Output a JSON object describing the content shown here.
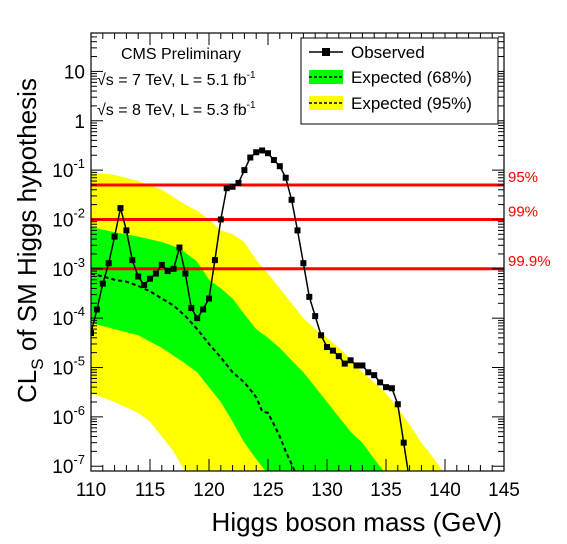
{
  "chart_data": {
    "type": "line",
    "xlabel": "Higgs boson mass (GeV)",
    "ylabel_main": "CL",
    "ylabel_sub": "S",
    "ylabel_rest": " of SM Higgs hypothesis",
    "xlim": [
      110,
      145
    ],
    "ylim": [
      8e-08,
      60
    ],
    "y_scale": "log",
    "x_ticks": [
      110,
      115,
      120,
      125,
      130,
      135,
      140,
      145
    ],
    "y_ticks": [
      {
        "value": 1e-07,
        "base": "10",
        "exp": "-7"
      },
      {
        "value": 1e-06,
        "base": "10",
        "exp": "-6"
      },
      {
        "value": 1e-05,
        "base": "10",
        "exp": "-5"
      },
      {
        "value": 0.0001,
        "base": "10",
        "exp": "-4"
      },
      {
        "value": 0.001,
        "base": "10",
        "exp": "-3"
      },
      {
        "value": 0.01,
        "base": "10",
        "exp": "-2"
      },
      {
        "value": 0.1,
        "base": "10",
        "exp": "-1"
      },
      {
        "value": 1,
        "base": "1",
        "exp": ""
      },
      {
        "value": 10,
        "base": "10",
        "exp": ""
      }
    ],
    "annotations": {
      "experiment": "CMS Preliminary",
      "line1": {
        "sqrt": "√",
        "prefix": "s = 7 TeV, L = 5.1 fb",
        "sup": "-1"
      },
      "line2": {
        "sqrt": "√",
        "prefix": "s = 8 TeV, L = 5.3 fb",
        "sup": "-1"
      }
    },
    "legend": {
      "placement": "top-right",
      "entries": [
        {
          "label": "Observed",
          "kind": "marker-line"
        },
        {
          "label": "Expected (68%)",
          "kind": "band",
          "color": "#00ff00"
        },
        {
          "label": "Expected (95%)",
          "kind": "band",
          "color": "#ffff00"
        }
      ]
    },
    "confidence_lines": [
      {
        "value": 0.05,
        "label": "95%"
      },
      {
        "value": 0.01,
        "label": "99%"
      },
      {
        "value": 0.001,
        "label": "99.9%"
      }
    ],
    "colors": {
      "band68": "#00ff00",
      "band95": "#ffff00",
      "cl_line": "#ff0000",
      "observed": "#000000"
    },
    "observed": [
      {
        "x": 110,
        "y": 5e-05
      },
      {
        "x": 110.5,
        "y": 0.00015
      },
      {
        "x": 111,
        "y": 0.0005
      },
      {
        "x": 111.5,
        "y": 0.0013
      },
      {
        "x": 112,
        "y": 0.0045
      },
      {
        "x": 112.5,
        "y": 0.017
      },
      {
        "x": 113,
        "y": 0.006
      },
      {
        "x": 113.5,
        "y": 0.0015
      },
      {
        "x": 114,
        "y": 0.0007
      },
      {
        "x": 114.5,
        "y": 0.00047
      },
      {
        "x": 115,
        "y": 0.00063
      },
      {
        "x": 115.5,
        "y": 0.0008
      },
      {
        "x": 116,
        "y": 0.0012
      },
      {
        "x": 116.5,
        "y": 0.0009
      },
      {
        "x": 117,
        "y": 0.001
      },
      {
        "x": 117.5,
        "y": 0.0027
      },
      {
        "x": 118,
        "y": 0.0008
      },
      {
        "x": 118.5,
        "y": 0.00016
      },
      {
        "x": 119,
        "y": 0.0001
      },
      {
        "x": 119.5,
        "y": 0.00015
      },
      {
        "x": 120,
        "y": 0.00025
      },
      {
        "x": 120.5,
        "y": 0.0015
      },
      {
        "x": 121,
        "y": 0.01
      },
      {
        "x": 121.5,
        "y": 0.043
      },
      {
        "x": 122,
        "y": 0.046
      },
      {
        "x": 122.5,
        "y": 0.055
      },
      {
        "x": 123,
        "y": 0.1
      },
      {
        "x": 123.5,
        "y": 0.18
      },
      {
        "x": 124,
        "y": 0.23
      },
      {
        "x": 124.5,
        "y": 0.25
      },
      {
        "x": 125,
        "y": 0.22
      },
      {
        "x": 125.5,
        "y": 0.16
      },
      {
        "x": 126,
        "y": 0.12
      },
      {
        "x": 126.5,
        "y": 0.07
      },
      {
        "x": 127,
        "y": 0.025
      },
      {
        "x": 127.5,
        "y": 0.006
      },
      {
        "x": 128,
        "y": 0.0013
      },
      {
        "x": 128.5,
        "y": 0.00027
      },
      {
        "x": 129,
        "y": 0.00011
      },
      {
        "x": 129.5,
        "y": 4.5e-05
      },
      {
        "x": 130,
        "y": 2.6e-05
      },
      {
        "x": 130.5,
        "y": 2.2e-05
      },
      {
        "x": 131,
        "y": 1.7e-05
      },
      {
        "x": 131.5,
        "y": 1.2e-05
      },
      {
        "x": 132,
        "y": 1.4e-05
      },
      {
        "x": 132.5,
        "y": 1.1e-05
      },
      {
        "x": 133,
        "y": 1.1e-05
      },
      {
        "x": 133.5,
        "y": 8e-06
      },
      {
        "x": 134,
        "y": 7e-06
      },
      {
        "x": 134.5,
        "y": 5e-06
      },
      {
        "x": 135,
        "y": 4e-06
      },
      {
        "x": 135.5,
        "y": 3.8e-06
      },
      {
        "x": 136,
        "y": 1.8e-06
      },
      {
        "x": 136.5,
        "y": 3e-07
      },
      {
        "x": 137,
        "y": 5e-08
      }
    ],
    "expected_median": [
      {
        "x": 110,
        "y": 0.0008
      },
      {
        "x": 111,
        "y": 0.0007
      },
      {
        "x": 112,
        "y": 0.0006
      },
      {
        "x": 113,
        "y": 0.00055
      },
      {
        "x": 114,
        "y": 0.00045
      },
      {
        "x": 115,
        "y": 0.00035
      },
      {
        "x": 116,
        "y": 0.00025
      },
      {
        "x": 117,
        "y": 0.00018
      },
      {
        "x": 118,
        "y": 0.00011
      },
      {
        "x": 119,
        "y": 6e-05
      },
      {
        "x": 120,
        "y": 3e-05
      },
      {
        "x": 121,
        "y": 1.6e-05
      },
      {
        "x": 122,
        "y": 8e-06
      },
      {
        "x": 123,
        "y": 5e-06
      },
      {
        "x": 124,
        "y": 2.5e-06
      },
      {
        "x": 124.5,
        "y": 1.3e-06
      },
      {
        "x": 125,
        "y": 1.2e-06
      },
      {
        "x": 125.5,
        "y": 7e-07
      },
      {
        "x": 126,
        "y": 4e-07
      },
      {
        "x": 126.5,
        "y": 2e-07
      },
      {
        "x": 127,
        "y": 1.1e-07
      },
      {
        "x": 127.5,
        "y": 6e-08
      }
    ],
    "band68_upper": [
      {
        "x": 110,
        "y": 0.007
      },
      {
        "x": 112,
        "y": 0.0055
      },
      {
        "x": 114,
        "y": 0.0045
      },
      {
        "x": 116,
        "y": 0.0035
      },
      {
        "x": 117.5,
        "y": 0.0026
      },
      {
        "x": 119,
        "y": 0.0014
      },
      {
        "x": 120,
        "y": 0.0006
      },
      {
        "x": 121,
        "y": 0.0004
      },
      {
        "x": 122,
        "y": 0.00025
      },
      {
        "x": 123,
        "y": 0.00012
      },
      {
        "x": 124,
        "y": 6e-05
      },
      {
        "x": 125,
        "y": 4e-05
      },
      {
        "x": 126,
        "y": 2.5e-05
      },
      {
        "x": 127,
        "y": 1.4e-05
      },
      {
        "x": 128,
        "y": 8e-06
      },
      {
        "x": 129,
        "y": 4e-06
      },
      {
        "x": 130,
        "y": 2e-06
      },
      {
        "x": 131,
        "y": 1e-06
      },
      {
        "x": 132,
        "y": 5e-07
      },
      {
        "x": 133,
        "y": 3e-07
      },
      {
        "x": 134,
        "y": 1.4e-07
      },
      {
        "x": 134.8,
        "y": 8e-08
      }
    ],
    "band68_lower": [
      {
        "x": 110,
        "y": 8e-05
      },
      {
        "x": 112,
        "y": 6e-05
      },
      {
        "x": 114,
        "y": 4.5e-05
      },
      {
        "x": 116,
        "y": 2.5e-05
      },
      {
        "x": 118,
        "y": 1.2e-05
      },
      {
        "x": 119,
        "y": 8e-06
      },
      {
        "x": 120,
        "y": 4e-06
      },
      {
        "x": 121,
        "y": 2e-06
      },
      {
        "x": 122,
        "y": 8e-07
      },
      {
        "x": 123,
        "y": 3e-07
      },
      {
        "x": 124,
        "y": 1.4e-07
      },
      {
        "x": 124.8,
        "y": 8e-08
      }
    ],
    "band95_upper": [
      {
        "x": 110,
        "y": 0.09
      },
      {
        "x": 112,
        "y": 0.08
      },
      {
        "x": 114,
        "y": 0.06
      },
      {
        "x": 116,
        "y": 0.04
      },
      {
        "x": 118,
        "y": 0.02
      },
      {
        "x": 119,
        "y": 0.015
      },
      {
        "x": 120,
        "y": 0.01
      },
      {
        "x": 121,
        "y": 0.006
      },
      {
        "x": 122,
        "y": 0.005
      },
      {
        "x": 123,
        "y": 0.0035
      },
      {
        "x": 124,
        "y": 0.0015
      },
      {
        "x": 125,
        "y": 0.0008
      },
      {
        "x": 126,
        "y": 0.0004
      },
      {
        "x": 127,
        "y": 0.0002
      },
      {
        "x": 128,
        "y": 0.0001
      },
      {
        "x": 129,
        "y": 6e-05
      },
      {
        "x": 130,
        "y": 4e-05
      },
      {
        "x": 131,
        "y": 2.5e-05
      },
      {
        "x": 132,
        "y": 1.5e-05
      },
      {
        "x": 133,
        "y": 8e-06
      },
      {
        "x": 134,
        "y": 5e-06
      },
      {
        "x": 135,
        "y": 3e-06
      },
      {
        "x": 136,
        "y": 1.5e-06
      },
      {
        "x": 137,
        "y": 7e-07
      },
      {
        "x": 138,
        "y": 3e-07
      },
      {
        "x": 139,
        "y": 1.5e-07
      },
      {
        "x": 139.8,
        "y": 8e-08
      }
    ],
    "band95_lower": [
      {
        "x": 110,
        "y": 3e-06
      },
      {
        "x": 112,
        "y": 2e-06
      },
      {
        "x": 114,
        "y": 1.2e-06
      },
      {
        "x": 115,
        "y": 8e-07
      },
      {
        "x": 116,
        "y": 4e-07
      },
      {
        "x": 117,
        "y": 2e-07
      },
      {
        "x": 117.7,
        "y": 1e-07
      },
      {
        "x": 118,
        "y": 8e-08
      }
    ]
  }
}
